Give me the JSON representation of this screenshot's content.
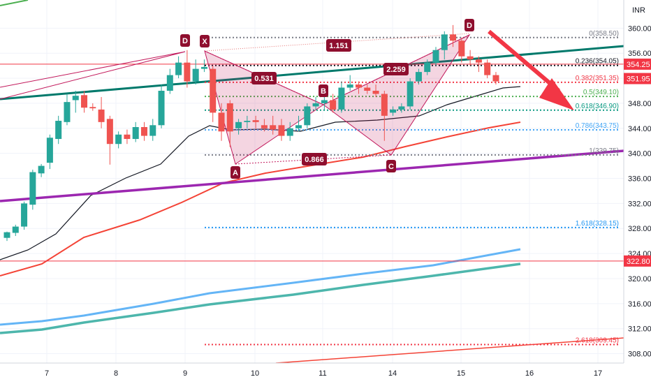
{
  "currency": "INR",
  "chart_data": {
    "type": "candlestick",
    "x_ticks": [
      "7",
      "8",
      "9",
      "10",
      "11",
      "14",
      "15",
      "16",
      "17"
    ],
    "y_ticks": [
      308.0,
      312.0,
      316.0,
      320.0,
      324.0,
      328.0,
      332.0,
      336.0,
      340.0,
      344.0,
      348.0,
      352.0,
      356.0,
      360.0
    ],
    "ylim": [
      306.5,
      364.5
    ],
    "candles": [
      [
        326.5,
        327.4,
        326.0,
        327.5
      ],
      [
        327.3,
        328.3,
        326.8,
        328.6
      ],
      [
        328.3,
        332.0,
        327.8,
        332.3
      ],
      [
        331.8,
        337.0,
        331.0,
        337.4
      ],
      [
        336.8,
        338.0,
        336.2,
        338.3
      ],
      [
        338.5,
        342.5,
        337.5,
        343.0
      ],
      [
        342.3,
        345.2,
        341.5,
        346.0
      ],
      [
        345.0,
        348.2,
        344.5,
        349.5
      ],
      [
        348.5,
        349.2,
        346.5,
        350.0
      ],
      [
        349.3,
        347.3,
        346.5,
        350.0
      ],
      [
        347.4,
        347.2,
        346.8,
        348.0
      ],
      [
        347.0,
        345.0,
        344.0,
        349.0
      ],
      [
        345.5,
        341.5,
        338.2,
        346.0
      ],
      [
        341.5,
        343.0,
        340.8,
        343.5
      ],
      [
        343.0,
        342.3,
        341.5,
        343.8
      ],
      [
        342.3,
        344.2,
        341.8,
        345.0
      ],
      [
        344.2,
        342.8,
        342.0,
        345.0
      ],
      [
        342.8,
        344.5,
        342.0,
        345.5
      ],
      [
        344.5,
        350.0,
        344.0,
        351.0
      ],
      [
        350.0,
        352.5,
        349.5,
        353.5
      ],
      [
        352.5,
        354.5,
        352.0,
        355.5
      ],
      [
        354.5,
        351.5,
        350.5,
        356.5
      ],
      [
        351.5,
        353.5,
        351.0,
        355.0
      ],
      [
        353.5,
        353.8,
        353.0,
        355.0
      ],
      [
        353.5,
        346.5,
        345.0,
        354.0
      ],
      [
        346.5,
        343.5,
        342.0,
        348.0
      ],
      [
        348.0,
        343.5,
        341.0,
        348.5
      ],
      [
        344.0,
        345.0,
        343.0,
        345.5
      ],
      [
        345.0,
        345.2,
        344.0,
        346.0
      ],
      [
        345.3,
        345.0,
        344.0,
        346.0
      ],
      [
        344.5,
        344.0,
        343.5,
        345.5
      ],
      [
        344.5,
        343.8,
        343.0,
        346.0
      ],
      [
        344.5,
        342.8,
        342.0,
        345.5
      ],
      [
        342.8,
        344.0,
        342.0,
        345.0
      ],
      [
        344.0,
        344.5,
        343.5,
        346.0
      ],
      [
        344.5,
        347.5,
        344.0,
        348.0
      ],
      [
        347.5,
        348.0,
        347.0,
        349.0
      ],
      [
        348.0,
        348.5,
        347.0,
        350.0
      ],
      [
        348.5,
        347.0,
        346.5,
        349.5
      ],
      [
        347.0,
        350.5,
        346.5,
        351.5
      ],
      [
        350.5,
        351.0,
        350.0,
        352.5
      ],
      [
        351.0,
        350.5,
        349.5,
        351.5
      ],
      [
        350.5,
        350.0,
        349.5,
        351.0
      ],
      [
        350.0,
        349.5,
        349.0,
        351.0
      ],
      [
        349.5,
        346.0,
        342.0,
        350.0
      ],
      [
        346.5,
        347.0,
        346.0,
        347.5
      ],
      [
        347.0,
        347.5,
        346.5,
        348.0
      ],
      [
        347.5,
        351.5,
        347.0,
        352.0
      ],
      [
        351.5,
        353.0,
        351.0,
        353.5
      ],
      [
        353.0,
        354.5,
        352.5,
        355.0
      ],
      [
        354.5,
        356.5,
        354.0,
        357.0
      ],
      [
        356.5,
        359.0,
        355.0,
        359.5
      ],
      [
        359.0,
        358.0,
        357.0,
        360.5
      ],
      [
        358.0,
        355.5,
        354.5,
        358.5
      ],
      [
        355.5,
        355.0,
        354.0,
        356.5
      ],
      [
        355.0,
        354.5,
        353.0,
        355.5
      ],
      [
        354.5,
        352.5,
        352.0,
        355.0
      ],
      [
        352.5,
        351.5,
        351.0,
        353.0
      ]
    ],
    "x_range_candles": [
      0,
      70
    ],
    "fib_levels": [
      {
        "label": "0(358.50)",
        "value": 358.5,
        "color": "#787b86"
      },
      {
        "label": "0.236(354.05)",
        "value": 354.05,
        "color": "#131722"
      },
      {
        "label": "0.382(351.35)",
        "value": 351.35,
        "color": "#f23645"
      },
      {
        "label": "0.5(349.10)",
        "value": 349.1,
        "color": "#4caf50"
      },
      {
        "label": "0.618(346.90)",
        "value": 346.9,
        "color": "#089981"
      },
      {
        "label": "0.786(343.75)",
        "value": 343.75,
        "color": "#42a5f5"
      },
      {
        "label": "1(339.75)",
        "value": 339.75,
        "color": "#787b86"
      },
      {
        "label": "1.618(328.15)",
        "value": 328.15,
        "color": "#2196f3"
      },
      {
        "label": "2.618(309.45)",
        "value": 309.45,
        "color": "#f23645"
      }
    ],
    "pattern_points": [
      {
        "label": "D",
        "role": "prev-d"
      },
      {
        "label": "X",
        "role": "x"
      },
      {
        "label": "A",
        "role": "a"
      },
      {
        "label": "B",
        "role": "b"
      },
      {
        "label": "C",
        "role": "c"
      },
      {
        "label": "D",
        "role": "d"
      }
    ],
    "ratios": [
      "0.531",
      "1.151",
      "0.866",
      "2.259"
    ],
    "price_badges": [
      {
        "text": "354.25",
        "value": 354.25,
        "color": "#f23645"
      },
      {
        "text": "351.95",
        "value": 351.95,
        "color": "#f23645"
      },
      {
        "text": "322.80",
        "value": 322.8,
        "color": "#f23645"
      }
    ],
    "horizontal_lines": [
      {
        "value": 354.25,
        "color": "#f23645"
      },
      {
        "value": 322.8,
        "color": "#f23645"
      }
    ],
    "colors": {
      "up": "#26a69a",
      "down": "#ef5350",
      "pattern_fill": "#c2185b",
      "teal_trend": "#00796b",
      "purple_trend": "#9c27b0",
      "red_ma": "#f44336",
      "blue_ma": "#64b5f6",
      "green_ma": "#4db6ac",
      "black_ma": "#131722",
      "arrow": "#f23645"
    }
  }
}
